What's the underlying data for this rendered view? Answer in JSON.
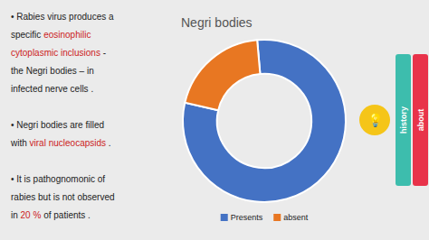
{
  "chart_data": {
    "type": "donut",
    "title": "Negri bodies",
    "categories": [
      "Presents",
      "absent"
    ],
    "values": [
      80,
      20
    ],
    "colors": [
      "#4472C4",
      "#E87722"
    ],
    "legend": "bottom",
    "annotations": {
      "notes": [
        [
          {
            "text": "• Rabies virus produces a"
          }
        ],
        [
          {
            "text": "specific "
          },
          {
            "text": "eosinophilic",
            "color": "#CC2222"
          }
        ],
        [
          {
            "text": "cytoplasmic inclusions",
            "color": "#CC2222"
          },
          {
            "text": " -"
          }
        ],
        [
          {
            "text": "the Negri bodies – in"
          }
        ],
        [
          {
            "text": "infected nerve cells ."
          }
        ],
        [],
        [
          {
            "text": "• Negri bodies are filled"
          }
        ],
        [
          {
            "text": "with "
          },
          {
            "text": "viral nucleocapsids",
            "color": "#CC2222"
          },
          {
            "text": " ."
          }
        ],
        [],
        [
          {
            "text": "• It is pathognomonic of"
          }
        ],
        [
          {
            "text": "rabies but is "
          },
          {
            "text": "not observed"
          }
        ],
        [
          {
            "text": "in "
          },
          {
            "text": "20 %",
            "color": "#CC2222"
          },
          {
            "text": " of patients ."
          }
        ]
      ],
      "badge": {
        "text": "💡",
        "color": "#F5C518"
      },
      "tabs": [
        {
          "text": "history",
          "color": "#3DBDAD"
        },
        {
          "text": "about",
          "color": "#E8334A"
        }
      ]
    }
  }
}
